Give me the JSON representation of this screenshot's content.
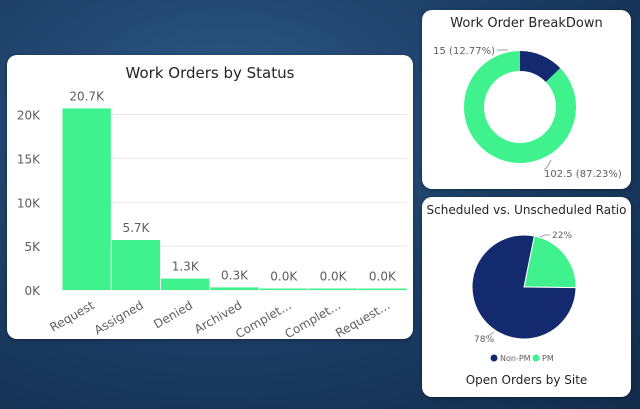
{
  "cards": {
    "status": {
      "title": "Work Orders by Status"
    },
    "breakdown": {
      "title": "Work Order BreakDown"
    },
    "ratio": {
      "title": "Scheduled vs. Unscheduled Ratio",
      "sub_title": "Open Orders by Site"
    }
  },
  "colors": {
    "green": "#3ff28e",
    "navy": "#132a6e",
    "text": "#605e5c",
    "grid": "#e8e8e8"
  },
  "chart_data": [
    {
      "type": "bar",
      "title": "Work Orders by Status",
      "categories": [
        "Request",
        "Assigned",
        "Denied",
        "Archived",
        "Complet...",
        "Complet...",
        "Request..."
      ],
      "values": [
        20700,
        5700,
        1300,
        300,
        0,
        0,
        0
      ],
      "data_labels": [
        "20.7K",
        "5.7K",
        "1.3K",
        "0.3K",
        "0.0K",
        "0.0K",
        "0.0K"
      ],
      "yticks": [
        "0K",
        "5K",
        "10K",
        "15K",
        "20K"
      ],
      "ylim": [
        0,
        22000
      ],
      "grid": true,
      "xlabel": "",
      "ylabel": ""
    },
    {
      "type": "pie",
      "donut": true,
      "title": "Work Order BreakDown",
      "slices": [
        {
          "value": 15,
          "label": "15 (12.77%)",
          "color": "#132a6e"
        },
        {
          "value": 102.5,
          "label": "102.5 (87.23%)",
          "color": "#3ff28e"
        }
      ]
    },
    {
      "type": "pie",
      "title": "Scheduled vs. Unscheduled Ratio",
      "slices": [
        {
          "name": "Non-PM",
          "value": 78,
          "label": "78%",
          "color": "#132a6e"
        },
        {
          "name": "PM",
          "value": 22,
          "label": "22%",
          "color": "#3ff28e"
        }
      ],
      "legend": [
        "Non-PM",
        "PM"
      ],
      "legend_position": "bottom"
    }
  ]
}
